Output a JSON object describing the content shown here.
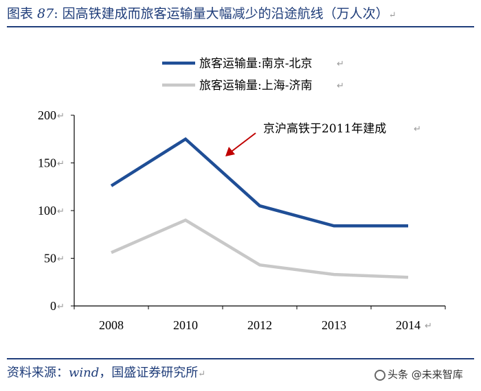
{
  "figure": {
    "label_prefix": "图表 ",
    "label_num": "87",
    "title_text": ": 因高铁建成而旅客运输量大幅减少的沿途航线（万人次）",
    "pilcrow": "↵"
  },
  "source": {
    "prefix": "资料来源：",
    "wind": "wind",
    "suffix": "，国盛证券研究所"
  },
  "watermark": "头条 @未来智库",
  "colors": {
    "title": "#1f3d7a",
    "series_beijing": "#1f4e96",
    "series_jinan": "#c8c8c8",
    "arrow": "#c00000",
    "axis": "#000000"
  },
  "chart_data": {
    "type": "line",
    "title": "因高铁建成而旅客运输量大幅减少的沿途航线（万人次）",
    "unit": "万人次",
    "categories": [
      "2008",
      "2010",
      "2012",
      "2013",
      "2014"
    ],
    "ylim": [
      0,
      200
    ],
    "yticks": [
      0,
      50,
      100,
      150,
      200
    ],
    "grid": false,
    "legend_position": "top-right",
    "series": [
      {
        "name": "旅客运输量:南京-北京",
        "color": "#1f4e96",
        "values": [
          126,
          175,
          105,
          84,
          84
        ]
      },
      {
        "name": "旅客运输量:上海-济南",
        "color": "#c8c8c8",
        "values": [
          56,
          90,
          43,
          33,
          30
        ]
      }
    ],
    "annotation": {
      "text": "京沪高铁于2011年建成",
      "target_index": 1
    }
  }
}
